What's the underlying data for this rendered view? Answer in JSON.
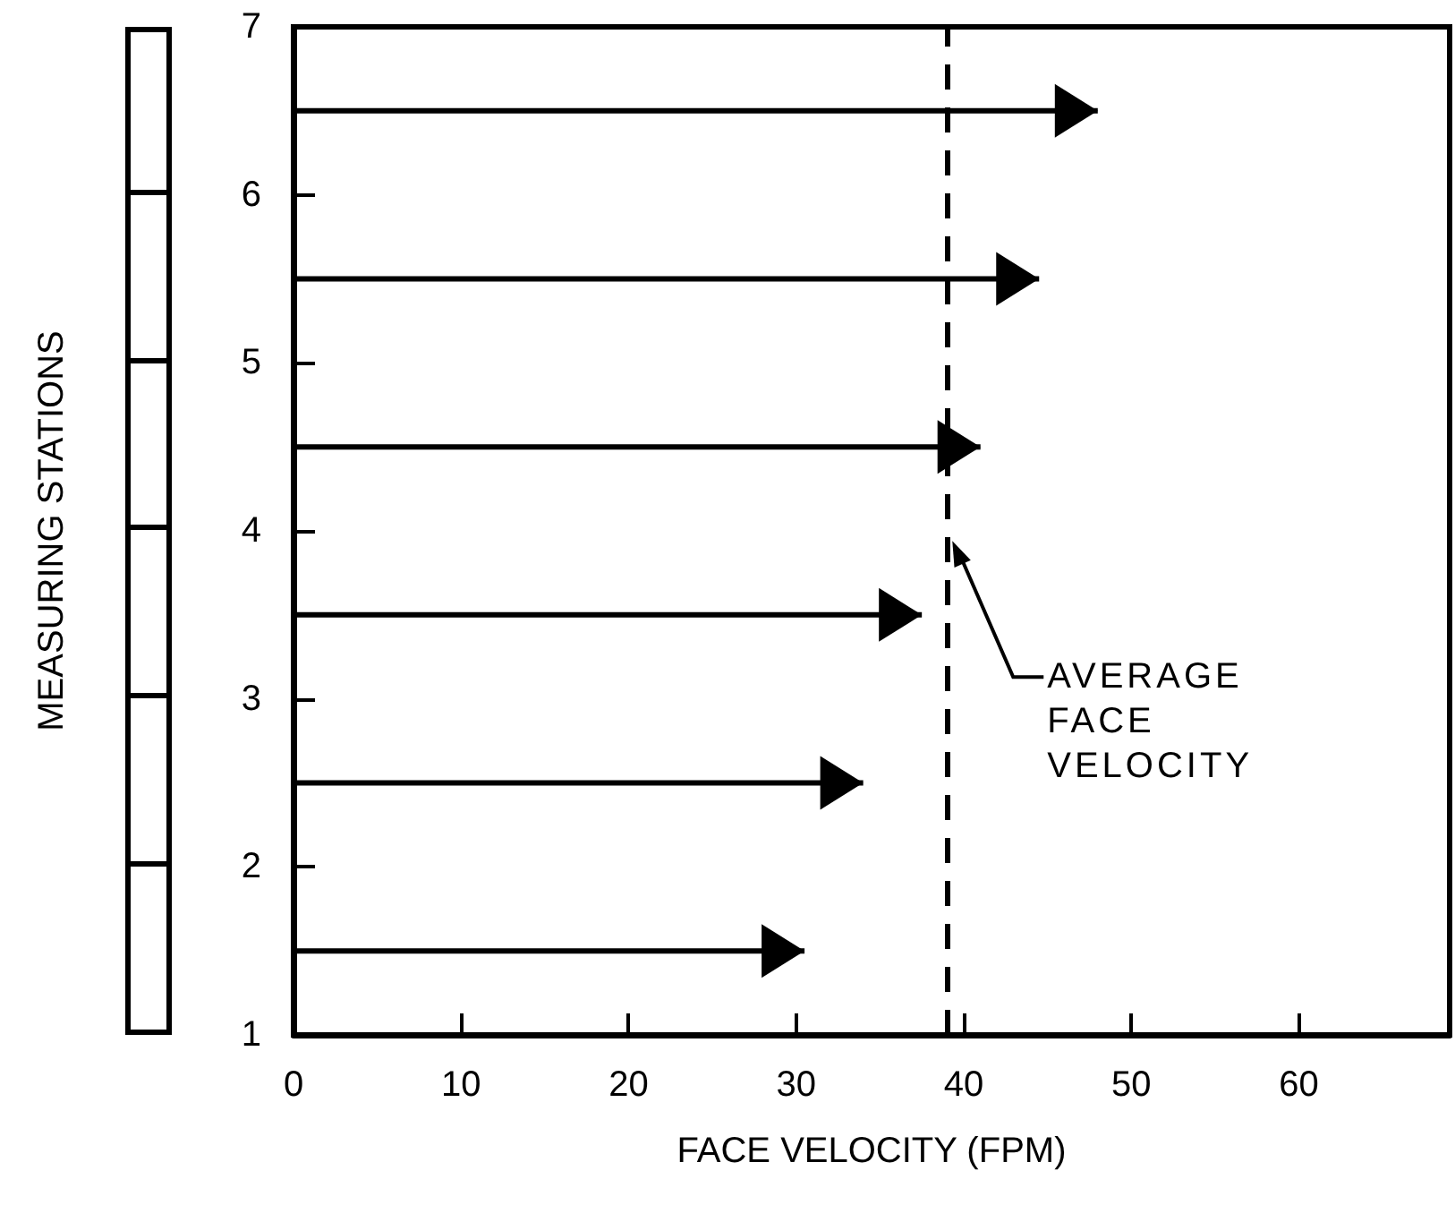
{
  "chart_data": {
    "type": "bar",
    "orientation": "horizontal",
    "xlabel": "FACE VELOCITY (FPM)",
    "ylabel": "MEASURING STATIONS",
    "x": [
      1.5,
      2.5,
      3.5,
      4.5,
      5.5,
      6.5
    ],
    "values": [
      30.5,
      34,
      37.5,
      41,
      44.5,
      48
    ],
    "color": "#000000",
    "xlim": [
      0,
      69
    ],
    "xticks": [
      0,
      10,
      20,
      30,
      40,
      50,
      60
    ],
    "ylim": [
      1,
      7
    ],
    "yticks": [
      1,
      2,
      3,
      4,
      5,
      6,
      7
    ],
    "grid": false,
    "ref_lines": [
      {
        "axis": "x",
        "value": 39,
        "label": "AVERAGE FACE VELOCITY",
        "line_style": "dashed",
        "color": "#000000"
      }
    ]
  }
}
